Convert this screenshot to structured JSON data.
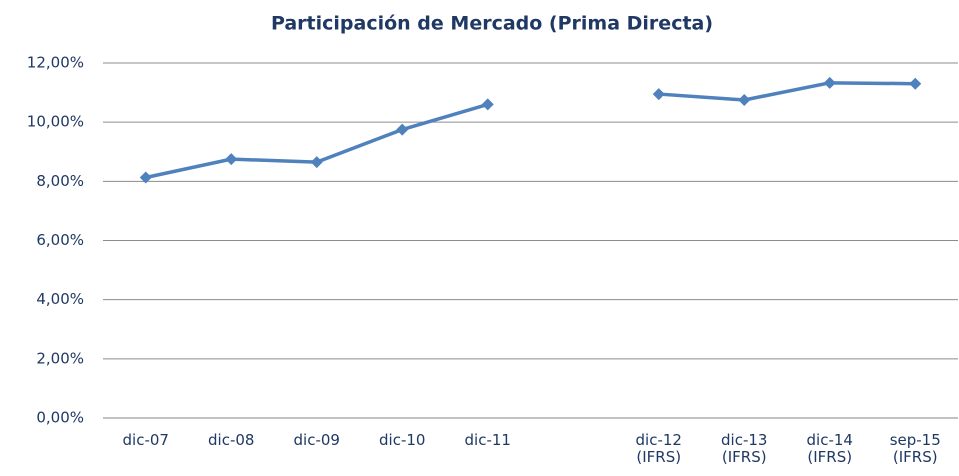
{
  "chart_data": {
    "type": "line",
    "title": "Participación de Mercado (Prima Directa)",
    "categories": [
      "dic-07",
      "dic-08",
      "dic-09",
      "dic-10",
      "dic-11",
      null,
      "dic-12 (IFRS)",
      "dic-13 (IFRS)",
      "dic-14 (IFRS)",
      "sep-15 (IFRS)"
    ],
    "series": [
      {
        "name": "Participación de Mercado",
        "color": "#4f81bd",
        "values": [
          8.13,
          8.75,
          8.65,
          9.75,
          10.6,
          null,
          10.95,
          10.75,
          11.33,
          11.3
        ]
      }
    ],
    "ylim": [
      0,
      12
    ],
    "yticks": [
      {
        "value": 0,
        "label": "0,00%"
      },
      {
        "value": 2,
        "label": "2,00%"
      },
      {
        "value": 4,
        "label": "4,00%"
      },
      {
        "value": 6,
        "label": "6,00%"
      },
      {
        "value": 8,
        "label": "8,00%"
      },
      {
        "value": 10,
        "label": "10,00%"
      },
      {
        "value": 12,
        "label": "12,00%"
      }
    ],
    "grid": true
  }
}
